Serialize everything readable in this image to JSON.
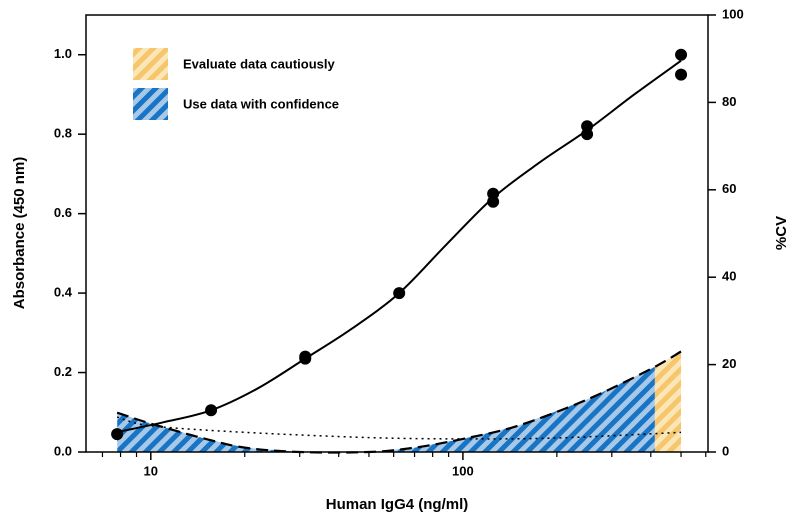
{
  "chart_data": {
    "type": "scatter",
    "xlabel": "Human IgG4 (ng/ml)",
    "ylabel": "Absorbance (450 nm)",
    "y2label": "%CV",
    "xscale": "log",
    "xlim": [
      6.2,
      610
    ],
    "xticks": [
      10,
      100
    ],
    "xminor_ticks": [
      7,
      8,
      9,
      20,
      30,
      40,
      50,
      60,
      70,
      80,
      90,
      200,
      300,
      400,
      500,
      600
    ],
    "ylim": [
      0,
      1.1
    ],
    "yticks": [
      {
        "value": 0,
        "label": "0.0"
      },
      0.2,
      0.4,
      0.6,
      0.8,
      {
        "value": 1,
        "label": "1.0"
      }
    ],
    "y2lim": [
      0,
      100
    ],
    "y2ticks": [
      0,
      20,
      40,
      60,
      80,
      100
    ],
    "points": {
      "color": "#000000",
      "x": [
        7.8,
        15.6,
        31.25,
        31.25,
        62.5,
        125,
        125,
        250,
        250,
        500,
        500
      ],
      "values": [
        0.045,
        0.105,
        0.235,
        0.24,
        0.4,
        0.63,
        0.65,
        0.8,
        0.82,
        0.95,
        1.0
      ]
    },
    "fit_curve": {
      "color": "#000000",
      "x": [
        7.8,
        11,
        15.6,
        22,
        31.25,
        44,
        62.5,
        88,
        125,
        177,
        250,
        354,
        500
      ],
      "values": [
        0.05,
        0.075,
        0.105,
        0.16,
        0.235,
        0.31,
        0.4,
        0.52,
        0.64,
        0.73,
        0.81,
        0.9,
        0.985
      ]
    },
    "cv_curve": {
      "color": "#000000",
      "axis": "y2",
      "x": [
        7.8,
        10,
        15,
        20,
        30,
        50,
        70,
        100,
        150,
        250,
        400,
        500
      ],
      "values": [
        9,
        6.5,
        3,
        1,
        0,
        0,
        1,
        3,
        6,
        12,
        19,
        23
      ]
    },
    "dotted_curve": {
      "color": "#000000",
      "axis": "y2",
      "x": [
        7.8,
        10,
        20,
        50,
        100,
        200,
        500
      ],
      "values": [
        8,
        6,
        4.5,
        3.3,
        3,
        3.2,
        4.5
      ]
    },
    "regions": [
      {
        "name": "Evaluate data cautiously",
        "color": "#f5c66c",
        "background": "#fbe6b8",
        "xlim": [
          412,
          500
        ]
      },
      {
        "name": "Use data with confidence",
        "color": "#1874c4",
        "background": "#a8c8e8",
        "xlim": [
          7.8,
          412
        ]
      }
    ]
  }
}
